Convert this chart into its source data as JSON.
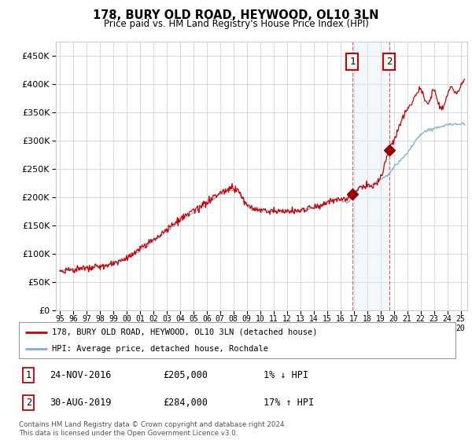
{
  "title": "178, BURY OLD ROAD, HEYWOOD, OL10 3LN",
  "subtitle": "Price paid vs. HM Land Registry's House Price Index (HPI)",
  "yticks": [
    0,
    50000,
    100000,
    150000,
    200000,
    250000,
    300000,
    350000,
    400000,
    450000
  ],
  "ylim": [
    0,
    475000
  ],
  "xlim_start": 1994.7,
  "xlim_end": 2025.5,
  "sale1_date": 2016.9,
  "sale1_price": 205000,
  "sale1_label": "1",
  "sale2_date": 2019.67,
  "sale2_price": 284000,
  "sale2_label": "2",
  "hpi_color": "#7aadd4",
  "price_color": "#cc0000",
  "marker_color": "#990000",
  "shade_color": "#daeaf5",
  "grid_color": "#cccccc",
  "legend_label1": "178, BURY OLD ROAD, HEYWOOD, OL10 3LN (detached house)",
  "legend_label2": "HPI: Average price, detached house, Rochdale",
  "table_row1": [
    "1",
    "24-NOV-2016",
    "£205,000",
    "1% ↓ HPI"
  ],
  "table_row2": [
    "2",
    "30-AUG-2019",
    "£284,000",
    "17% ↑ HPI"
  ],
  "footnote": "Contains HM Land Registry data © Crown copyright and database right 2024.\nThis data is licensed under the Open Government Licence v3.0.",
  "bg_color": "#ffffff"
}
